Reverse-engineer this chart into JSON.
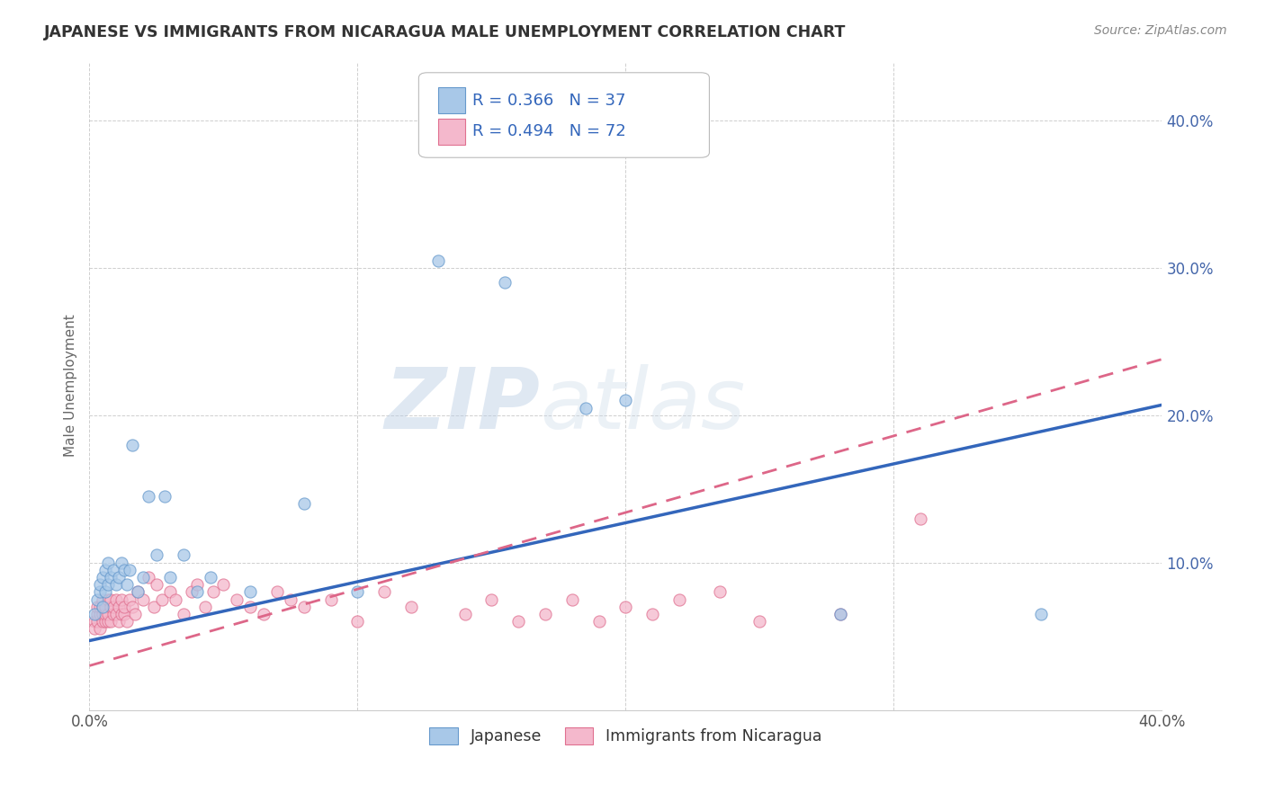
{
  "title": "JAPANESE VS IMMIGRANTS FROM NICARAGUA MALE UNEMPLOYMENT CORRELATION CHART",
  "source": "Source: ZipAtlas.com",
  "ylabel": "Male Unemployment",
  "xlim": [
    0.0,
    0.4
  ],
  "ylim": [
    0.0,
    0.44
  ],
  "xticks": [
    0.0,
    0.1,
    0.2,
    0.3,
    0.4
  ],
  "xticklabels": [
    "0.0%",
    "",
    "",
    "",
    "40.0%"
  ],
  "yticks": [
    0.0,
    0.1,
    0.2,
    0.3,
    0.4
  ],
  "yticklabels_right": [
    "",
    "10.0%",
    "20.0%",
    "30.0%",
    "40.0%"
  ],
  "japanese_color": "#a8c8e8",
  "nicaragua_color": "#f4b8cc",
  "japanese_edge_color": "#6699cc",
  "nicaragua_edge_color": "#e07090",
  "japanese_line_color": "#3366bb",
  "nicaragua_line_color": "#dd6688",
  "japanese_R": 0.366,
  "japanese_N": 37,
  "nicaragua_R": 0.494,
  "nicaragua_N": 72,
  "watermark_zip": "ZIP",
  "watermark_atlas": "atlas",
  "background_color": "#ffffff",
  "grid_color": "#bbbbbb",
  "japanese_x": [
    0.002,
    0.003,
    0.004,
    0.004,
    0.005,
    0.005,
    0.006,
    0.006,
    0.007,
    0.007,
    0.008,
    0.009,
    0.01,
    0.011,
    0.012,
    0.013,
    0.014,
    0.015,
    0.016,
    0.018,
    0.02,
    0.022,
    0.025,
    0.028,
    0.03,
    0.035,
    0.04,
    0.045,
    0.06,
    0.08,
    0.1,
    0.13,
    0.155,
    0.185,
    0.2,
    0.28,
    0.355
  ],
  "japanese_y": [
    0.065,
    0.075,
    0.08,
    0.085,
    0.07,
    0.09,
    0.08,
    0.095,
    0.085,
    0.1,
    0.09,
    0.095,
    0.085,
    0.09,
    0.1,
    0.095,
    0.085,
    0.095,
    0.18,
    0.08,
    0.09,
    0.145,
    0.105,
    0.145,
    0.09,
    0.105,
    0.08,
    0.09,
    0.08,
    0.14,
    0.08,
    0.305,
    0.29,
    0.205,
    0.21,
    0.065,
    0.065
  ],
  "nicaragua_x": [
    0.002,
    0.002,
    0.003,
    0.003,
    0.003,
    0.004,
    0.004,
    0.004,
    0.005,
    0.005,
    0.005,
    0.005,
    0.006,
    0.006,
    0.006,
    0.007,
    0.007,
    0.007,
    0.008,
    0.008,
    0.008,
    0.009,
    0.009,
    0.01,
    0.01,
    0.011,
    0.011,
    0.012,
    0.012,
    0.013,
    0.013,
    0.014,
    0.015,
    0.016,
    0.017,
    0.018,
    0.02,
    0.022,
    0.024,
    0.025,
    0.027,
    0.03,
    0.032,
    0.035,
    0.038,
    0.04,
    0.043,
    0.046,
    0.05,
    0.055,
    0.06,
    0.065,
    0.07,
    0.075,
    0.08,
    0.09,
    0.1,
    0.11,
    0.12,
    0.14,
    0.15,
    0.16,
    0.17,
    0.18,
    0.19,
    0.2,
    0.21,
    0.22,
    0.235,
    0.25,
    0.28,
    0.31
  ],
  "nicaragua_y": [
    0.06,
    0.055,
    0.06,
    0.065,
    0.07,
    0.055,
    0.065,
    0.07,
    0.06,
    0.065,
    0.07,
    0.075,
    0.06,
    0.065,
    0.07,
    0.06,
    0.065,
    0.075,
    0.06,
    0.07,
    0.075,
    0.065,
    0.07,
    0.065,
    0.075,
    0.06,
    0.07,
    0.065,
    0.075,
    0.065,
    0.07,
    0.06,
    0.075,
    0.07,
    0.065,
    0.08,
    0.075,
    0.09,
    0.07,
    0.085,
    0.075,
    0.08,
    0.075,
    0.065,
    0.08,
    0.085,
    0.07,
    0.08,
    0.085,
    0.075,
    0.07,
    0.065,
    0.08,
    0.075,
    0.07,
    0.075,
    0.06,
    0.08,
    0.07,
    0.065,
    0.075,
    0.06,
    0.065,
    0.075,
    0.06,
    0.07,
    0.065,
    0.075,
    0.08,
    0.06,
    0.065,
    0.13
  ]
}
